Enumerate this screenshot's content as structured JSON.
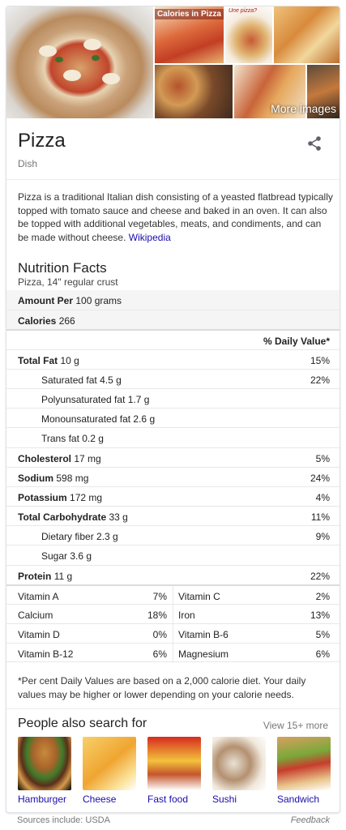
{
  "gallery": {
    "calories_title": "Calories in Pizza",
    "one_pizza_text": "Une pizza?",
    "more_images": "More images"
  },
  "header": {
    "title": "Pizza",
    "subtitle": "Dish"
  },
  "description": {
    "text": "Pizza is a traditional Italian dish consisting of a yeasted flatbread typically topped with tomato sauce and cheese and baked in an oven. It can also be topped with additional vegetables, meats, and condiments, and can be made without cheese.",
    "link": "Wikipedia"
  },
  "nutrition": {
    "title": "Nutrition Facts",
    "serving": "Pizza, 14\" regular crust",
    "amount_label": "Amount Per",
    "amount_value": "100 grams",
    "calories_label": "Calories",
    "calories_value": "266",
    "daily_value_header": "% Daily Value*",
    "rows": [
      {
        "name": "Total Fat",
        "amount": "10 g",
        "dv": "15%"
      },
      {
        "name": "Saturated fat",
        "amount": "4.5 g",
        "dv": "22%"
      },
      {
        "name": "Polyunsaturated fat",
        "amount": "1.7 g",
        "dv": ""
      },
      {
        "name": "Monounsaturated fat",
        "amount": "2.6 g",
        "dv": ""
      },
      {
        "name": "Trans fat",
        "amount": "0.2 g",
        "dv": ""
      },
      {
        "name": "Cholesterol",
        "amount": "17 mg",
        "dv": "5%"
      },
      {
        "name": "Sodium",
        "amount": "598 mg",
        "dv": "24%"
      },
      {
        "name": "Potassium",
        "amount": "172 mg",
        "dv": "4%"
      },
      {
        "name": "Total Carbohydrate",
        "amount": "33 g",
        "dv": "11%"
      },
      {
        "name": "Dietary fiber",
        "amount": "2.3 g",
        "dv": "9%"
      },
      {
        "name": "Sugar",
        "amount": "3.6 g",
        "dv": ""
      },
      {
        "name": "Protein",
        "amount": "11 g",
        "dv": "22%"
      }
    ],
    "vitamins": [
      {
        "n1": "Vitamin A",
        "p1": "7%",
        "n2": "Vitamin C",
        "p2": "2%"
      },
      {
        "n1": "Calcium",
        "p1": "18%",
        "n2": "Iron",
        "p2": "13%"
      },
      {
        "n1": "Vitamin D",
        "p1": "0%",
        "n2": "Vitamin B-6",
        "p2": "5%"
      },
      {
        "n1": "Vitamin B-12",
        "p1": "6%",
        "n2": "Magnesium",
        "p2": "6%"
      }
    ],
    "footnote": "*Per cent Daily Values are based on a 2,000 calorie diet. Your daily values may be higher or lower depending on your calorie needs."
  },
  "people_also_search": {
    "title": "People also search for",
    "more": "View 15+ more",
    "items": [
      {
        "label": "Hamburger"
      },
      {
        "label": "Cheese"
      },
      {
        "label": "Fast food"
      },
      {
        "label": "Sushi"
      },
      {
        "label": "Sandwich"
      }
    ]
  },
  "footer": {
    "sources": "Sources include: USDA",
    "feedback": "Feedback"
  },
  "colors": {
    "link": "#1a0dab",
    "muted": "#777777",
    "divider": "#ebebeb"
  }
}
